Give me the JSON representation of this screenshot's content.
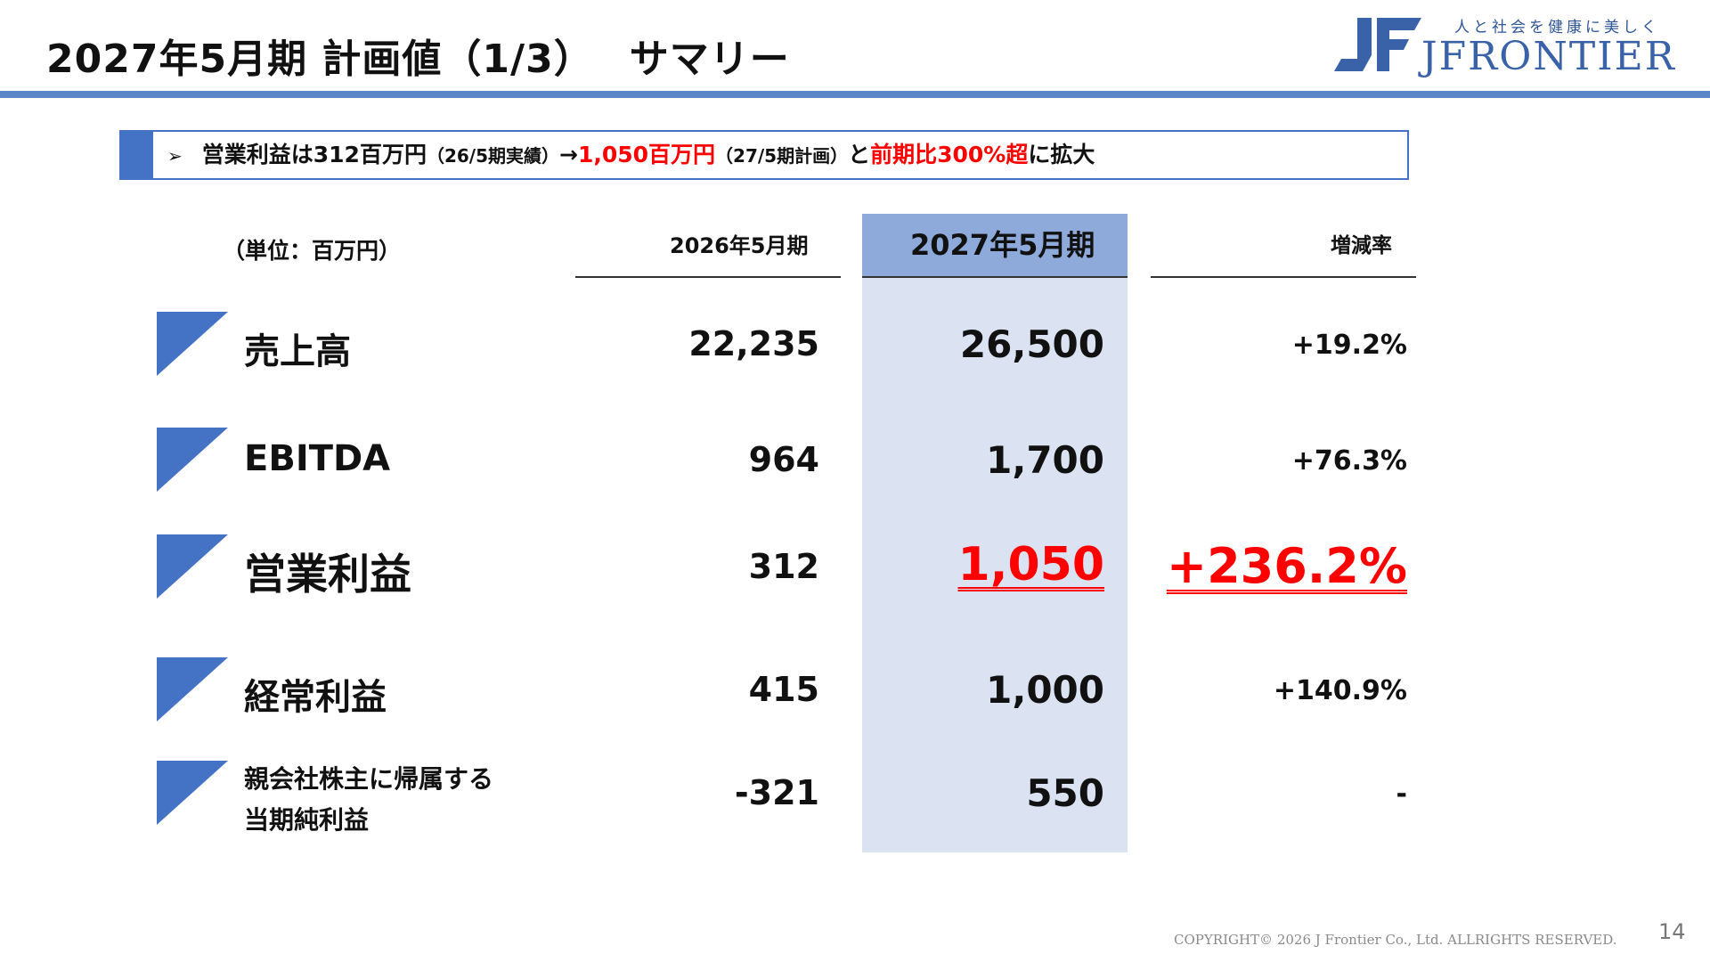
{
  "header": {
    "title_main": "2027年5月期 計画値（1/3）",
    "title_sub": "サマリー"
  },
  "logo": {
    "tagline": "人と社会を健康に美しく",
    "name": "JFRONTIER",
    "brand_color": "#3a62a8"
  },
  "summary": {
    "bullet_icon": "arrow-bullet",
    "parts": [
      "営業利益は312百万円",
      "（26/5期実績）",
      "→",
      "1,050百万円",
      "（27/5期計画）",
      "と",
      "前期比300%超",
      "に拡大"
    ]
  },
  "table": {
    "unit_label": "（単位：百万円）",
    "col_2026": "2026年5月期",
    "col_2027": "2027年5月期",
    "col_change": "増減率",
    "rows": [
      {
        "label": "売上高",
        "fy2026": "22,235",
        "fy2027": "26,500",
        "change": "+19.2%"
      },
      {
        "label": "EBITDA",
        "fy2026": "964",
        "fy2027": "1,700",
        "change": "+76.3%"
      },
      {
        "label": "営業利益",
        "fy2026": "312",
        "fy2027": "1,050",
        "change": "+236.2%"
      },
      {
        "label": "経常利益",
        "fy2026": "415",
        "fy2027": "1,000",
        "change": "+140.9%"
      },
      {
        "label_line1": "親会社株主に帰属する",
        "label_line2": "当期純利益",
        "fy2026": "-321",
        "fy2027": "550",
        "change": "-"
      }
    ]
  },
  "colors": {
    "accent": "#4472c4",
    "highlight_column": "#dbe3f3",
    "highlight_header": "#8eaadb",
    "emphasis": "#ff0000"
  },
  "footer": {
    "copyright": "COPYRIGHT© 2026 J Frontier Co., Ltd. ALLRIGHTS RESERVED.",
    "page_number": "14"
  }
}
